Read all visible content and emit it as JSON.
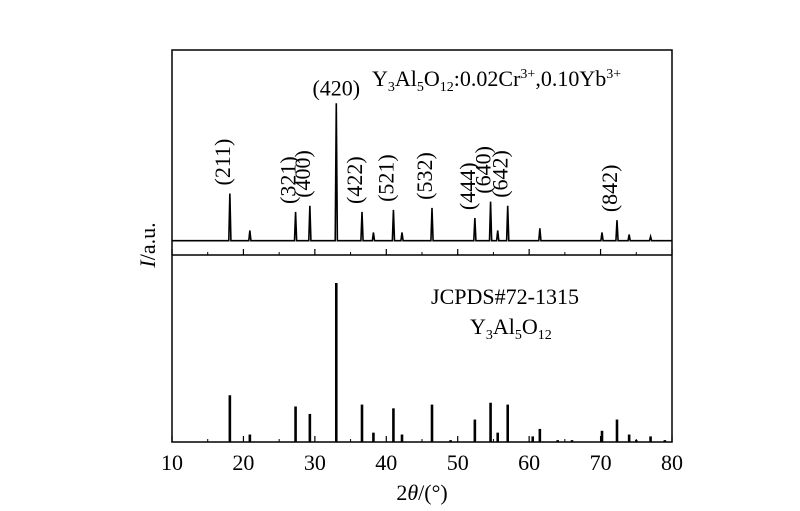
{
  "chart_data": [
    {
      "type": "line",
      "color": "#000000",
      "ylim": [
        0,
        100
      ],
      "ylabel": [
        {
          "text": "I",
          "style": "italic"
        },
        {
          "text": "/a.u."
        }
      ],
      "label": [
        {
          "text": "Y"
        },
        {
          "text": "3",
          "shift": "sub"
        },
        {
          "text": "Al"
        },
        {
          "text": "5",
          "shift": "sub"
        },
        {
          "text": "O"
        },
        {
          "text": "12",
          "shift": "sub"
        },
        {
          "text": ":0.02Cr"
        },
        {
          "text": "3+",
          "shift": "super"
        },
        {
          "text": ",0.10Yb"
        },
        {
          "text": "3+",
          "shift": "super"
        }
      ],
      "x": [
        10,
        17.95,
        18.1,
        18.25,
        20.75,
        20.9,
        21.05,
        27.15,
        27.3,
        27.45,
        29.15,
        29.3,
        29.45,
        32.85,
        33.0,
        33.15,
        36.45,
        36.6,
        36.75,
        38.05,
        38.2,
        38.35,
        40.85,
        41.0,
        41.15,
        42.05,
        42.2,
        42.35,
        46.25,
        46.4,
        46.55,
        52.25,
        52.4,
        52.55,
        54.45,
        54.6,
        54.75,
        55.45,
        55.6,
        55.75,
        56.85,
        57.0,
        57.15,
        61.35,
        61.5,
        61.65,
        70.05,
        70.2,
        70.35,
        72.15,
        72.3,
        72.45,
        73.85,
        74.0,
        74.15,
        76.85,
        77.0,
        77.15,
        80
      ],
      "values": [
        7,
        7,
        30,
        7,
        7,
        12,
        7,
        7,
        21,
        7,
        7,
        24,
        7,
        7,
        74,
        7,
        7,
        21,
        7,
        7,
        11,
        7,
        7,
        22,
        7,
        7,
        11,
        7,
        7,
        23,
        7,
        7,
        18,
        7,
        7,
        26,
        7,
        7,
        12,
        7,
        7,
        24,
        7,
        7,
        13,
        7,
        7,
        11,
        7,
        7,
        17,
        7,
        7,
        10,
        7,
        7,
        9,
        7,
        7
      ],
      "annotations": [
        {
          "text": "(211)",
          "x": 18.1,
          "orientation": "vertical"
        },
        {
          "text": "(321)",
          "x": 27.3,
          "orientation": "vertical"
        },
        {
          "text": "(400)",
          "x": 29.3,
          "orientation": "vertical"
        },
        {
          "text": "(420)",
          "x": 33.0,
          "orientation": "horizontal"
        },
        {
          "text": "(422)",
          "x": 36.6,
          "orientation": "vertical"
        },
        {
          "text": "(521)",
          "x": 41.0,
          "orientation": "vertical"
        },
        {
          "text": "(532)",
          "x": 46.4,
          "orientation": "vertical"
        },
        {
          "text": "(444)",
          "x": 52.4,
          "orientation": "vertical"
        },
        {
          "text": "(640)",
          "x": 54.6,
          "orientation": "vertical"
        },
        {
          "text": "(642)",
          "x": 57.0,
          "orientation": "vertical"
        },
        {
          "text": "(842)",
          "x": 72.3,
          "orientation": "vertical"
        }
      ]
    },
    {
      "type": "stick",
      "color": "#000000",
      "ylim": [
        0,
        100
      ],
      "reference": "JCPDS#72-1315",
      "label": [
        {
          "text": "Y"
        },
        {
          "text": "3",
          "shift": "sub"
        },
        {
          "text": "Al"
        },
        {
          "text": "5",
          "shift": "sub"
        },
        {
          "text": "O"
        },
        {
          "text": "12",
          "shift": "sub"
        }
      ],
      "x": [
        18.1,
        20.9,
        27.3,
        29.3,
        33.0,
        36.6,
        38.2,
        41.0,
        42.2,
        46.4,
        49.0,
        52.4,
        54.6,
        55.6,
        57.0,
        60.5,
        61.5,
        64.0,
        66.0,
        70.2,
        72.3,
        74.0,
        75.0,
        77.0,
        79.0
      ],
      "values": [
        25,
        4,
        19,
        15,
        85,
        20,
        5,
        18,
        4,
        20,
        1,
        12,
        21,
        5,
        20,
        3,
        7,
        1,
        1,
        6,
        12,
        4,
        1,
        3,
        1
      ],
      "xlim": [
        10,
        80
      ],
      "xticks": [
        10,
        20,
        30,
        40,
        50,
        60,
        70,
        80
      ],
      "xminorticks": [
        15,
        25,
        35,
        45,
        55,
        65,
        75
      ],
      "xlabel": [
        {
          "text": "2"
        },
        {
          "text": "θ",
          "style": "italic"
        },
        {
          "text": "/(°)"
        }
      ]
    }
  ]
}
